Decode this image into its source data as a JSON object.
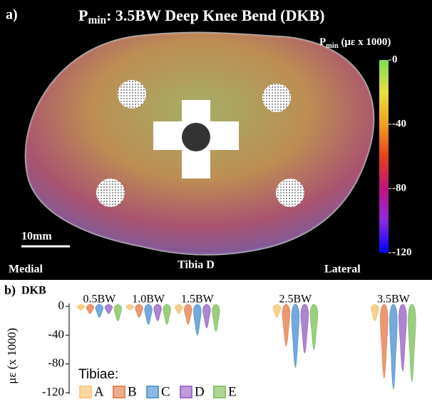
{
  "chart_data": [
    {
      "type": "heatmap",
      "panel_label": "a)",
      "title_main": "P",
      "title_sub": "min",
      "title_rest": ": 3.5BW Deep Knee Bend (DKB)",
      "colorbar_title_main": "P",
      "colorbar_title_sub": "min",
      "colorbar_title_rest": " (με x 1000)",
      "colorbar_lim": [
        -120,
        0
      ],
      "colorbar_ticks": [
        0,
        -40,
        -80,
        -120
      ],
      "colors": [
        "#0000ff",
        "#8a2be2",
        "#c0147a",
        "#e8401a",
        "#f0a020",
        "#e8e040",
        "#7ed957"
      ],
      "scale_label": "10mm",
      "annotations": [
        "Medial",
        "Tibia D",
        "Lateral"
      ]
    },
    {
      "type": "violin",
      "panel_label": "b)",
      "subtitle": "DKB",
      "ylabel": "με (x 1000)",
      "x": [
        0.5,
        1.0,
        1.5,
        2.5,
        3.5
      ],
      "xticks": [
        {
          "value": 0.5,
          "label": "0.5BW"
        },
        {
          "value": 1.0,
          "label": "1.0BW"
        },
        {
          "value": 1.5,
          "label": "1.5BW"
        },
        {
          "value": 2.5,
          "label": "2.5BW"
        },
        {
          "value": 3.5,
          "label": "3.5BW"
        }
      ],
      "xlim": [
        0.25,
        3.85
      ],
      "ylim": [
        -122,
        4
      ],
      "yticks": [
        0,
        -40,
        -80,
        -120
      ],
      "legend_title": "Tibiae:",
      "series": [
        {
          "name": "A",
          "color": "#f5c87a",
          "values": [
            -5,
            -5,
            -10,
            -15,
            -20
          ]
        },
        {
          "name": "B",
          "color": "#e8875a",
          "values": [
            -10,
            -15,
            -25,
            -55,
            -100
          ]
        },
        {
          "name": "C",
          "color": "#5b9bd5",
          "values": [
            -15,
            -25,
            -40,
            -85,
            -115
          ]
        },
        {
          "name": "D",
          "color": "#a070c8",
          "values": [
            -10,
            -20,
            -30,
            -65,
            -90
          ]
        },
        {
          "name": "E",
          "color": "#8cc56a",
          "values": [
            -20,
            -25,
            -35,
            -60,
            -105
          ]
        }
      ]
    }
  ]
}
